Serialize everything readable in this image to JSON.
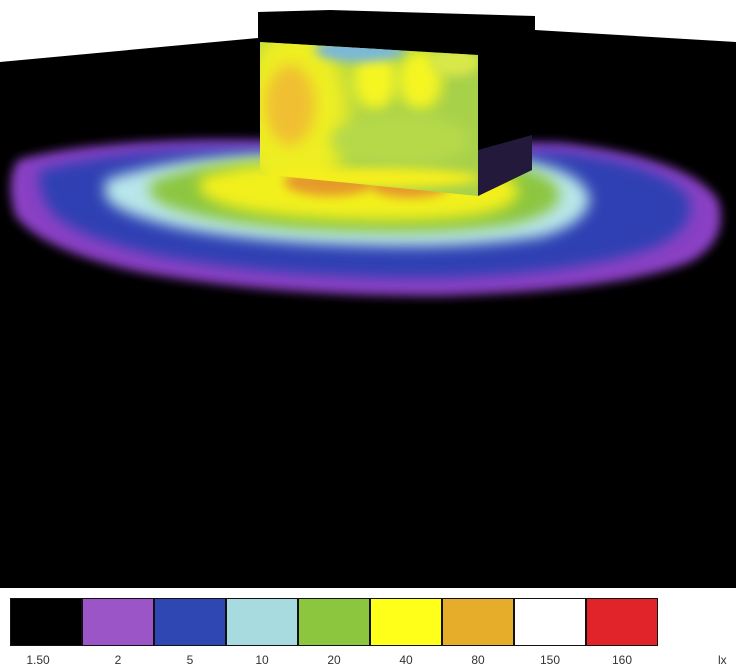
{
  "legend": {
    "unit": "lx",
    "entries": [
      {
        "label": "1.50",
        "color": "#000000"
      },
      {
        "label": "2",
        "color": "#9b55c6"
      },
      {
        "label": "5",
        "color": "#2f47b3"
      },
      {
        "label": "10",
        "color": "#a8dbe0"
      },
      {
        "label": "20",
        "color": "#8cc63f"
      },
      {
        "label": "40",
        "color": "#ffff1a"
      },
      {
        "label": "80",
        "color": "#e6ad2a"
      },
      {
        "label": "150",
        "color": "#ffffff"
      },
      {
        "label": "160",
        "color": "#e0242a"
      }
    ]
  }
}
